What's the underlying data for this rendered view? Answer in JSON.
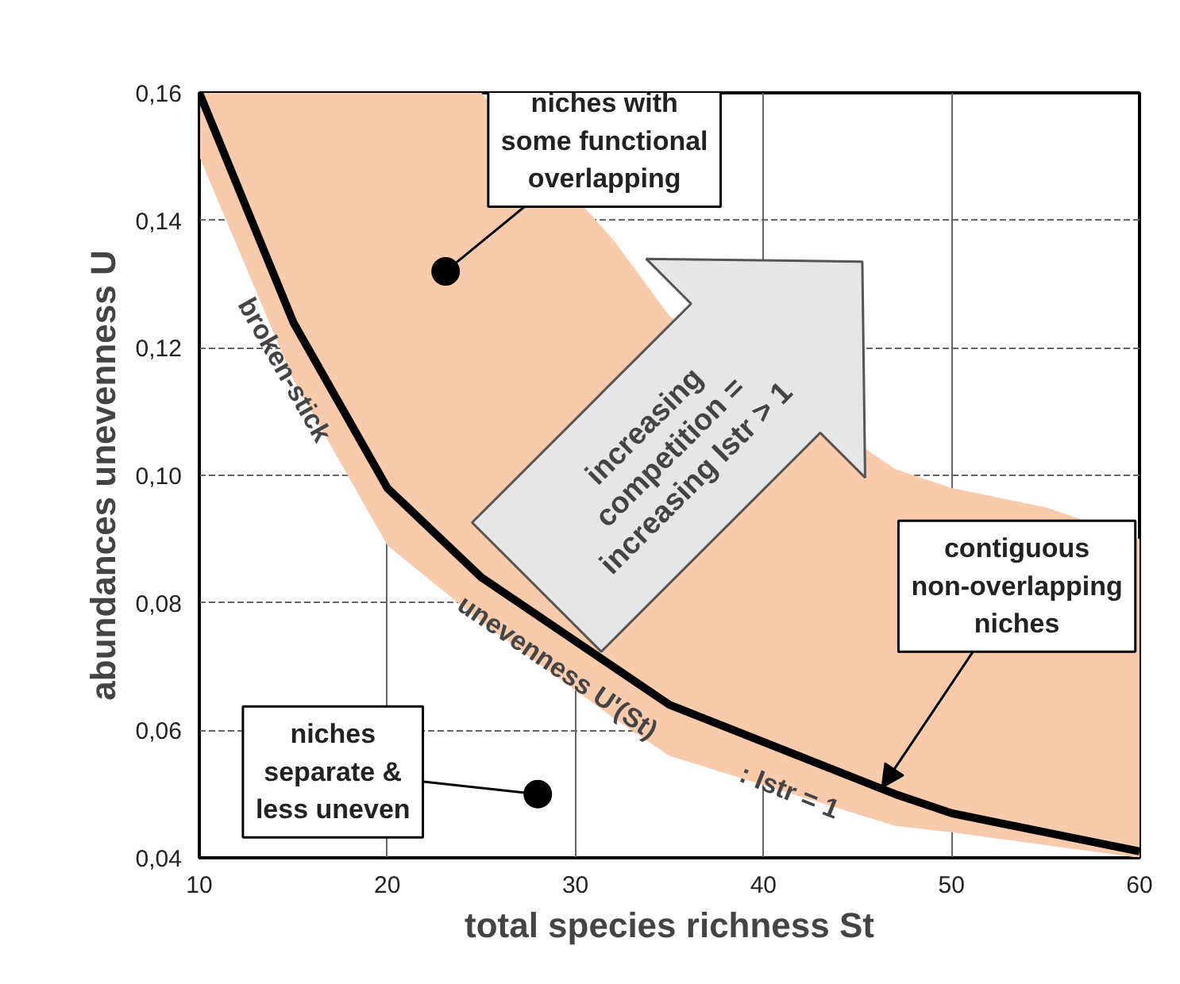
{
  "chart_data": {
    "type": "line",
    "xlabel": "total species richness St",
    "ylabel": "abundances unevenness U",
    "x": [
      10,
      15,
      20,
      25,
      32,
      35,
      47,
      50,
      55,
      60
    ],
    "series": [
      {
        "color": "#000000",
        "values": [
          0.16,
          0.124,
          0.098,
          0.084,
          0.07,
          0.064,
          0.05,
          0.047,
          0.044,
          0.041
        ],
        "lower": [
          0.15,
          0.115,
          0.089,
          0.077,
          0.062,
          0.056,
          0.045,
          0.044,
          0.042,
          0.04
        ],
        "upper": [
          0.16,
          0.16,
          0.16,
          0.16,
          0.137,
          0.125,
          0.101,
          0.098,
          0.095,
          0.09
        ]
      }
    ],
    "xlim": [
      10,
      60
    ],
    "ylim": [
      0.04,
      0.16
    ],
    "xticks": [
      10,
      20,
      30,
      40,
      50,
      60
    ],
    "yticks": [
      {
        "value": 0.04,
        "label": "0,04"
      },
      {
        "value": 0.06,
        "label": "0,06"
      },
      {
        "value": 0.08,
        "label": "0,08"
      },
      {
        "value": 0.1,
        "label": "0,10"
      },
      {
        "value": 0.12,
        "label": "0,12"
      },
      {
        "value": 0.14,
        "label": "0,14"
      },
      {
        "value": 0.16,
        "label": "0,16"
      }
    ],
    "grid": true,
    "marker": "none",
    "line_style": "solid",
    "annotations": [
      {
        "text": "niches with\nsome functional\noverlapping",
        "x": 23.1,
        "y": 0.132
      },
      "increasing\ncompetition =\nincreasing Istr > 1",
      {
        "text": "contiguous\nnon-overlapping\nniches",
        "x": 46.3,
        "y": 0.051
      },
      {
        "text": "niches\nseparate &\nless uneven",
        "x": 28.0,
        "y": 0.05
      },
      {
        "text": "broken-stick",
        "x": 16,
        "y": 0.119
      },
      {
        "text": "unevenness U'(St)",
        "x": 30,
        "y": 0.074
      },
      {
        "text": ": Istr = 1",
        "x": 42,
        "y": 0.055
      }
    ]
  }
}
